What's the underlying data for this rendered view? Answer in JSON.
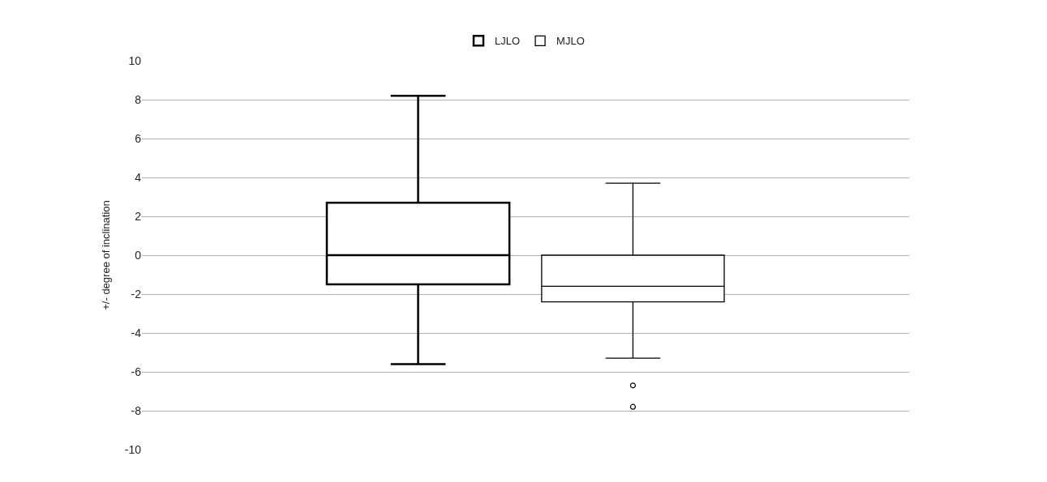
{
  "chart_data": {
    "type": "box",
    "ylabel": "+/- degree of inclination",
    "categories": [
      null
    ],
    "ylim": [
      -10,
      10
    ],
    "yticks": [
      -10,
      -8,
      -6,
      -4,
      -2,
      0,
      2,
      4,
      6,
      8,
      10
    ],
    "grid": "y",
    "legend": "top",
    "series": [
      {
        "name": "LJLO",
        "color": "#000000",
        "boxes": [
          {
            "low": -5.6,
            "q1": -1.5,
            "median": 0,
            "q3": 2.7,
            "high": 8.2
          }
        ]
      },
      {
        "name": "MJLO",
        "color": "#000000",
        "boxes": [
          {
            "low": -5.3,
            "q1": -2.4,
            "median": -1.6,
            "q3": 0,
            "high": 3.7,
            "outliers": [
              -6.7,
              -7.8
            ]
          }
        ]
      }
    ]
  }
}
